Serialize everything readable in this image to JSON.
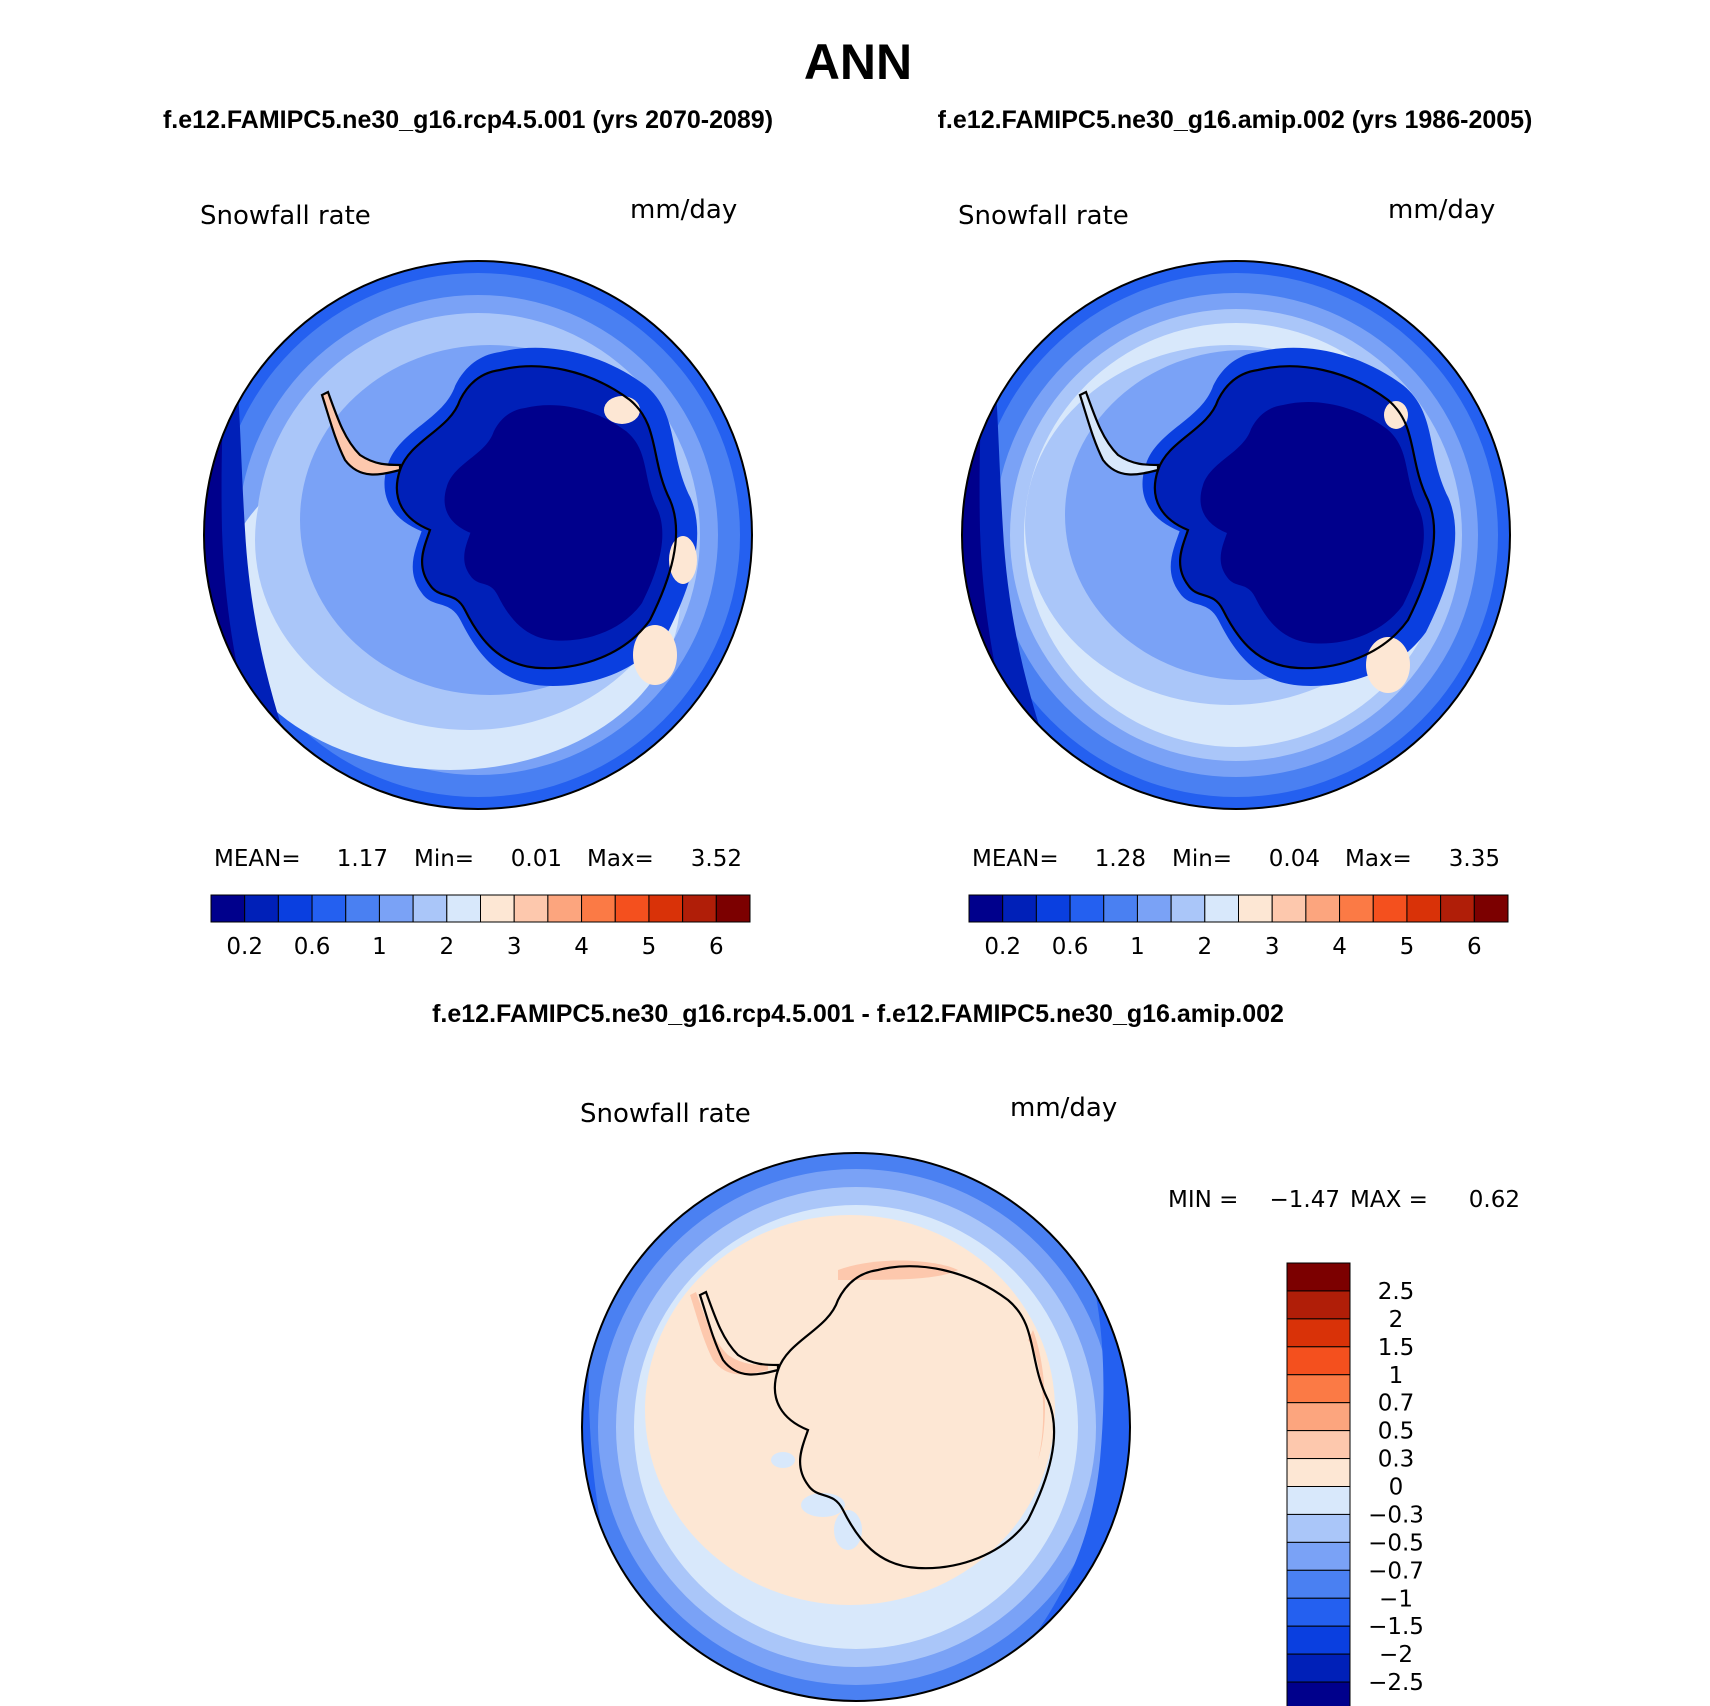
{
  "page_title": "ANN",
  "panels": [
    {
      "id": "test",
      "case_label": "f.e12.FAMIPC5.ne30_g16.rcp4.5.001 (yrs 2070-2089)",
      "variable": "Snowfall rate",
      "units": "mm/day",
      "stats": {
        "mean_label": "MEAN=",
        "mean": "1.17",
        "min_label": "Min=",
        "min": "0.01",
        "max_label": "Max=",
        "max": "3.52"
      }
    },
    {
      "id": "control",
      "case_label": "f.e12.FAMIPC5.ne30_g16.amip.002 (yrs 1986-2005)",
      "variable": "Snowfall rate",
      "units": "mm/day",
      "stats": {
        "mean_label": "MEAN=",
        "mean": "1.28",
        "min_label": "Min=",
        "min": "0.04",
        "max_label": "Max=",
        "max": "3.35"
      }
    }
  ],
  "abs_colorbar": {
    "colors": [
      "#00008c",
      "#0020b8",
      "#0a3fe0",
      "#2460f0",
      "#4a80f2",
      "#7aa2f6",
      "#aac6f9",
      "#d8e8fb",
      "#fde7d4",
      "#fdc8ad",
      "#fca57e",
      "#fb7a45",
      "#f4501e",
      "#d93208",
      "#b01e08",
      "#7c0000"
    ],
    "tick_labels": [
      "0.2",
      "0.6",
      "1",
      "2",
      "3",
      "4",
      "5",
      "6"
    ]
  },
  "difference": {
    "title": "f.e12.FAMIPC5.ne30_g16.rcp4.5.001 - f.e12.FAMIPC5.ne30_g16.amip.002",
    "variable": "Snowfall rate",
    "units": "mm/day",
    "min_label": "MIN =",
    "min": "−1.47",
    "max_label": "MAX =",
    "max": "0.62",
    "colorbar": {
      "colors_top_to_bottom": [
        "#7c0000",
        "#b01e08",
        "#d93208",
        "#f4501e",
        "#fb7a45",
        "#fca57e",
        "#fdc8ad",
        "#fde7d4",
        "#d8e8fb",
        "#aac6f9",
        "#7aa2f6",
        "#4a80f2",
        "#2460f0",
        "#0a3fe0",
        "#0020b8",
        "#00008c"
      ],
      "tick_labels_top_to_bottom": [
        "2.5",
        "2",
        "1.5",
        "1",
        "0.7",
        "0.5",
        "0.3",
        "0",
        "−0.3",
        "−0.5",
        "−0.7",
        "−1",
        "−1.5",
        "−2",
        "−2.5"
      ]
    }
  }
}
